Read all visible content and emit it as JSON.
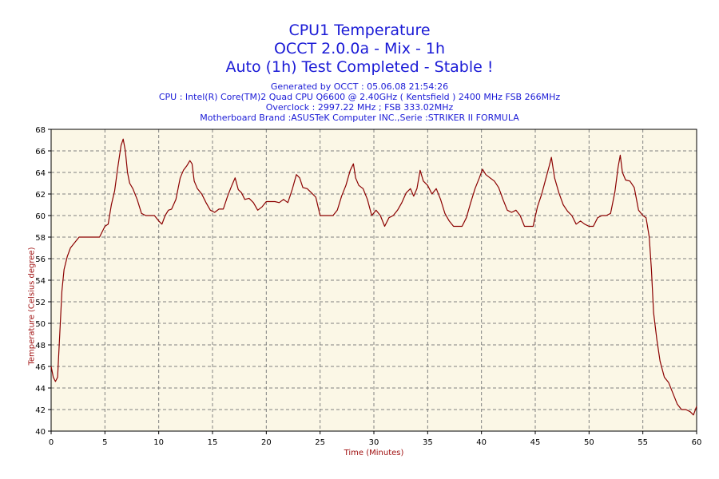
{
  "header": {
    "title1": "CPU1 Temperature",
    "title2": "OCCT 2.0.0a - Mix - 1h",
    "title3": "Auto (1h) Test Completed - Stable !",
    "generated": "Generated by OCCT : 05.06.08 21:54:26",
    "cpu": "CPU : Intel(R) Core(TM)2 Quad CPU Q6600 @ 2.40GHz ( Kentsfield ) 2400 MHz FSB 266MHz",
    "overclock": "Overclock : 2997.22 MHz ; FSB 333.02MHz",
    "motherboard": "Motherboard Brand :ASUSTeK Computer INC.,Serie :STRIKER II FORMULA"
  },
  "colors": {
    "title": "#1a1ad6",
    "axis_label": "#a01010",
    "line": "#8b0000",
    "plot_bg": "#fbf7e6",
    "grid": "#808080"
  },
  "chart_data": {
    "type": "line",
    "title": "CPU1 Temperature",
    "xlabel": "Time (Minutes)",
    "ylabel": "Temperature (Celsius degree)",
    "xlim": [
      0,
      60
    ],
    "ylim": [
      40,
      68
    ],
    "xticks": [
      0,
      5,
      10,
      15,
      20,
      25,
      30,
      35,
      40,
      45,
      50,
      55,
      60
    ],
    "yticks": [
      40,
      42,
      44,
      46,
      48,
      50,
      52,
      54,
      56,
      58,
      60,
      62,
      64,
      66,
      68
    ],
    "grid": true,
    "series": [
      {
        "x": [
          0,
          0.2,
          0.4,
          0.6,
          0.8,
          1.0,
          1.2,
          1.5,
          1.8,
          2.2,
          2.6,
          3.0,
          3.5,
          4.0,
          4.5,
          5.0,
          5.3,
          5.6,
          5.9,
          6.2,
          6.5,
          6.7,
          6.9,
          7.1,
          7.3,
          7.6,
          8.0,
          8.4,
          8.8,
          9.2,
          9.6,
          10.0,
          10.3,
          10.6,
          10.9,
          11.2,
          11.6,
          12.0,
          12.3,
          12.6,
          12.9,
          13.1,
          13.3,
          13.6,
          14.0,
          14.4,
          14.8,
          15.2,
          15.6,
          16.0,
          16.4,
          16.8,
          17.1,
          17.4,
          17.7,
          18.0,
          18.4,
          18.8,
          19.2,
          19.6,
          20.0,
          20.4,
          20.8,
          21.2,
          21.6,
          22.0,
          22.4,
          22.8,
          23.1,
          23.4,
          23.8,
          24.2,
          24.6,
          25.0,
          25.4,
          25.8,
          26.2,
          26.6,
          27.0,
          27.4,
          27.8,
          28.1,
          28.3,
          28.6,
          29.0,
          29.4,
          29.8,
          30.2,
          30.6,
          31.0,
          31.4,
          31.8,
          32.2,
          32.6,
          33.0,
          33.4,
          33.7,
          34.0,
          34.3,
          34.6,
          35.0,
          35.4,
          35.8,
          36.2,
          36.6,
          37.0,
          37.4,
          37.8,
          38.2,
          38.6,
          39.0,
          39.4,
          39.8,
          40.1,
          40.4,
          40.8,
          41.2,
          41.6,
          42.0,
          42.4,
          42.8,
          43.2,
          43.6,
          44.0,
          44.4,
          44.8,
          45.2,
          45.6,
          46.0,
          46.3,
          46.5,
          46.8,
          47.2,
          47.6,
          48.0,
          48.4,
          48.8,
          49.2,
          49.6,
          50.0,
          50.4,
          50.8,
          51.2,
          51.6,
          52.0,
          52.4,
          52.7,
          52.9,
          53.1,
          53.4,
          53.8,
          54.2,
          54.6,
          55.0,
          55.3,
          55.6,
          55.8,
          56.0,
          56.3,
          56.6,
          57.0,
          57.4,
          57.8,
          58.2,
          58.6,
          59.0,
          59.4,
          59.7,
          60.0
        ],
        "values": [
          46,
          45,
          44.6,
          45,
          49,
          53,
          55,
          56.2,
          57,
          57.5,
          58,
          58,
          58,
          58,
          58,
          59,
          59.2,
          61,
          62.3,
          64.5,
          66.5,
          67.1,
          66,
          64,
          63,
          62.5,
          61.5,
          60.2,
          60,
          60,
          60,
          59.5,
          59.2,
          60,
          60.5,
          60.6,
          61.5,
          63.5,
          64.2,
          64.6,
          65.1,
          64.8,
          63.2,
          62.5,
          62,
          61.2,
          60.5,
          60.3,
          60.6,
          60.6,
          61.8,
          62.8,
          63.5,
          62.4,
          62.1,
          61.5,
          61.6,
          61.2,
          60.5,
          60.8,
          61.3,
          61.3,
          61.3,
          61.2,
          61.5,
          61.2,
          62.4,
          63.8,
          63.5,
          62.6,
          62.5,
          62.1,
          61.7,
          60,
          60,
          60,
          60,
          60.5,
          61.8,
          62.8,
          64.2,
          64.8,
          63.5,
          62.8,
          62.5,
          61.5,
          60,
          60.5,
          60,
          59,
          59.8,
          60,
          60.5,
          61.2,
          62.1,
          62.5,
          61.8,
          62.5,
          64.2,
          63.2,
          62.8,
          62,
          62.5,
          61.5,
          60.2,
          59.5,
          59,
          59,
          59,
          59.8,
          61.2,
          62.5,
          63.5,
          64.3,
          63.8,
          63.5,
          63.2,
          62.6,
          61.5,
          60.5,
          60.3,
          60.5,
          60,
          59,
          59,
          59,
          60.8,
          62,
          63.5,
          64.6,
          65.4,
          63.5,
          62.1,
          61,
          60.4,
          60,
          59.2,
          59.5,
          59.2,
          59,
          59,
          59.8,
          60,
          60,
          60.2,
          62.2,
          64.5,
          65.6,
          64,
          63.3,
          63.2,
          62.6,
          60.5,
          60,
          59.8,
          58,
          55,
          51,
          48.5,
          46.5,
          45,
          44.5,
          43.5,
          42.5,
          42,
          42,
          41.8,
          41.5,
          42.3
        ]
      }
    ]
  }
}
